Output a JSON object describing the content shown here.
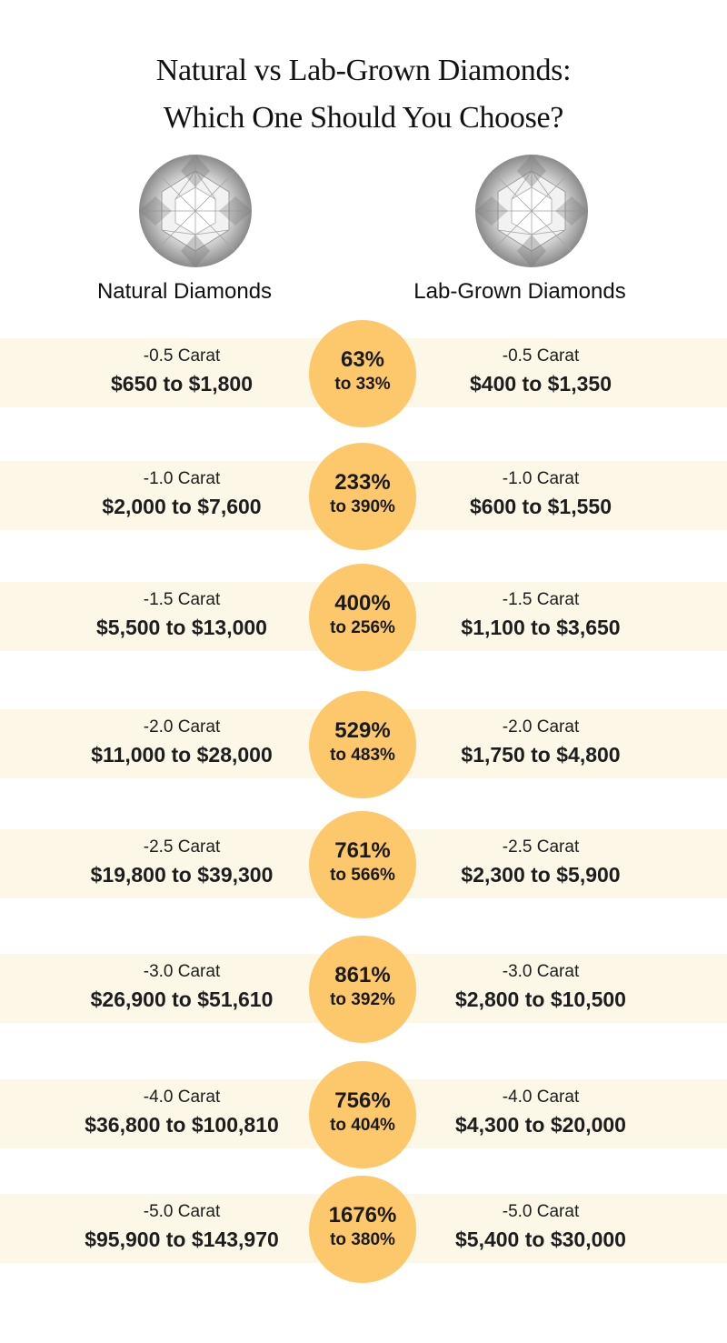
{
  "title": {
    "line1": "Natural vs Lab-Grown Diamonds:",
    "line2": "Which One Should You Choose?"
  },
  "columns": {
    "natural": "Natural Diamonds",
    "lab": "Lab-Grown Diamonds"
  },
  "colors": {
    "band": "#fdf7e8",
    "circle": "#fcc86b"
  },
  "rows": [
    {
      "natural_carat": "-0.5 Carat",
      "natural_price": "$650 to $1,800",
      "pct_top": "63%",
      "pct_bottom": "to 33%",
      "lab_carat": "-0.5 Carat",
      "lab_price": "$400 to $1,350"
    },
    {
      "natural_carat": "-1.0 Carat",
      "natural_price": "$2,000 to $7,600",
      "pct_top": "233%",
      "pct_bottom": "to 390%",
      "lab_carat": "-1.0 Carat",
      "lab_price": "$600 to $1,550"
    },
    {
      "natural_carat": "-1.5 Carat",
      "natural_price": "$5,500 to $13,000",
      "pct_top": "400%",
      "pct_bottom": "to 256%",
      "lab_carat": "-1.5 Carat",
      "lab_price": "$1,100 to $3,650"
    },
    {
      "natural_carat": "-2.0 Carat",
      "natural_price": "$11,000 to $28,000",
      "pct_top": "529%",
      "pct_bottom": "to 483%",
      "lab_carat": "-2.0 Carat",
      "lab_price": "$1,750 to $4,800"
    },
    {
      "natural_carat": "-2.5 Carat",
      "natural_price": "$19,800 to $39,300",
      "pct_top": "761%",
      "pct_bottom": "to 566%",
      "lab_carat": "-2.5 Carat",
      "lab_price": "$2,300 to $5,900"
    },
    {
      "natural_carat": "-3.0 Carat",
      "natural_price": "$26,900 to $51,610",
      "pct_top": "861%",
      "pct_bottom": "to 392%",
      "lab_carat": "-3.0 Carat",
      "lab_price": "$2,800 to $10,500"
    },
    {
      "natural_carat": "-4.0 Carat",
      "natural_price": "$36,800 to $100,810",
      "pct_top": "756%",
      "pct_bottom": "to 404%",
      "lab_carat": "-4.0 Carat",
      "lab_price": "$4,300 to $20,000"
    },
    {
      "natural_carat": "-5.0 Carat",
      "natural_price": "$95,900 to $143,970",
      "pct_top": "1676%",
      "pct_bottom": "to 380%",
      "lab_carat": "-5.0 Carat",
      "lab_price": "$5,400 to $30,000"
    }
  ]
}
